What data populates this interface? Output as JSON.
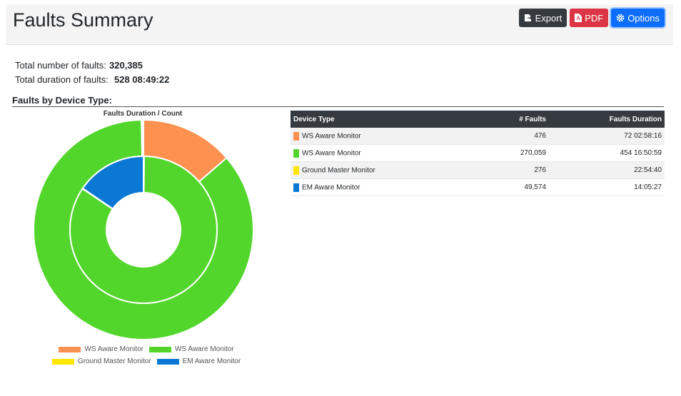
{
  "header": {
    "title": "Faults Summary",
    "buttons": {
      "export": "Export",
      "pdf": "PDF",
      "options": "Options"
    }
  },
  "stats": {
    "total_count_label": "Total number of faults:",
    "total_count_value": "320,385",
    "total_duration_label": "Total duration of faults:",
    "total_duration_value": "528 08:49:22"
  },
  "section_title": "Faults by Device Type:",
  "chart_data": {
    "type": "pie",
    "title": "Faults Duration / Count",
    "rings": [
      {
        "ring": "outer",
        "slices": [
          {
            "label": "WS Aware Monitor",
            "value": 72.12,
            "color": "#ff9150"
          },
          {
            "label": "WS Aware Monitor",
            "value": 454.7,
            "color": "#53d62c"
          },
          {
            "label": "Ground Master Monitor",
            "value": 0.95,
            "color": "#ffe600"
          },
          {
            "label": "EM Aware Monitor",
            "value": 0.59,
            "color": "#0b78d4"
          }
        ]
      },
      {
        "ring": "inner",
        "slices": [
          {
            "label": "WS Aware Monitor",
            "value": 476,
            "color": "#ff9150"
          },
          {
            "label": "WS Aware Monitor",
            "value": 270059,
            "color": "#53d62c"
          },
          {
            "label": "Ground Master Monitor",
            "value": 276,
            "color": "#ffe600"
          },
          {
            "label": "EM Aware Monitor",
            "value": 49574,
            "color": "#0b78d4"
          }
        ]
      }
    ],
    "legend": [
      {
        "label": "WS Aware Monitor",
        "color": "#ff9150"
      },
      {
        "label": "WS Aware Monitor",
        "color": "#53d62c"
      },
      {
        "label": "Ground Master Monitor",
        "color": "#ffe600"
      },
      {
        "label": "EM Aware Monitor",
        "color": "#0b78d4"
      }
    ],
    "legend_position": "bottom"
  },
  "table": {
    "headers": [
      "Device Type",
      "# Faults",
      "Faults Duration"
    ],
    "rows": [
      {
        "device": "WS Aware Monitor",
        "color": "#ff9150",
        "faults": "476",
        "duration": "72 02:58:16"
      },
      {
        "device": "WS Aware Monitor",
        "color": "#53d62c",
        "faults": "270,059",
        "duration": "454 16:50:59"
      },
      {
        "device": "Ground Master Monitor",
        "color": "#ffe600",
        "faults": "276",
        "duration": "22:54:40"
      },
      {
        "device": "EM Aware Monitor",
        "color": "#0b78d4",
        "faults": "49,574",
        "duration": "14:05:27"
      }
    ]
  }
}
